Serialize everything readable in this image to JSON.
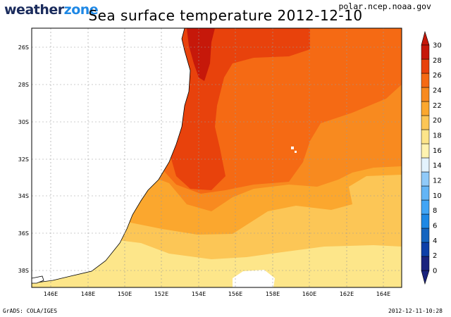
{
  "header": {
    "logo_part1": "weather",
    "logo_part2": "zone",
    "title": "Sea surface temperature 2012-12-10",
    "source": "polar.ncep.noaa.gov"
  },
  "footer": {
    "left": "GrADS: COLA/IGES",
    "right": "2012-12-11-10:28"
  },
  "map": {
    "lon_labels": [
      "146E",
      "148E",
      "150E",
      "152E",
      "154E",
      "156E",
      "158E",
      "160E",
      "162E",
      "164E"
    ],
    "lat_labels": [
      "26S",
      "28S",
      "30S",
      "32S",
      "34S",
      "36S",
      "38S"
    ]
  },
  "colorbar": {
    "levels": [
      "0",
      "2",
      "4",
      "6",
      "8",
      "10",
      "12",
      "14",
      "16",
      "18",
      "20",
      "22",
      "24",
      "26",
      "28",
      "30"
    ],
    "colors": [
      "#1a237e",
      "#0d3fa8",
      "#1565c0",
      "#1e88e5",
      "#42a5f5",
      "#64b5f6",
      "#90caf9",
      "#e3f2fd",
      "#fff3b0",
      "#fde58a",
      "#fcc656",
      "#fba72e",
      "#f88a1f",
      "#f56a14",
      "#e8420c",
      "#c6180a"
    ]
  },
  "colors": {
    "land": "#ffffff",
    "sst_16_18": "#fde68a",
    "sst_18_20": "#fcc656",
    "sst_20_22": "#fba72e",
    "sst_22_24": "#f88a1f",
    "sst_24_26": "#f56a14",
    "sst_26_28": "#e8420c",
    "sst_28_30": "#c6180a"
  }
}
